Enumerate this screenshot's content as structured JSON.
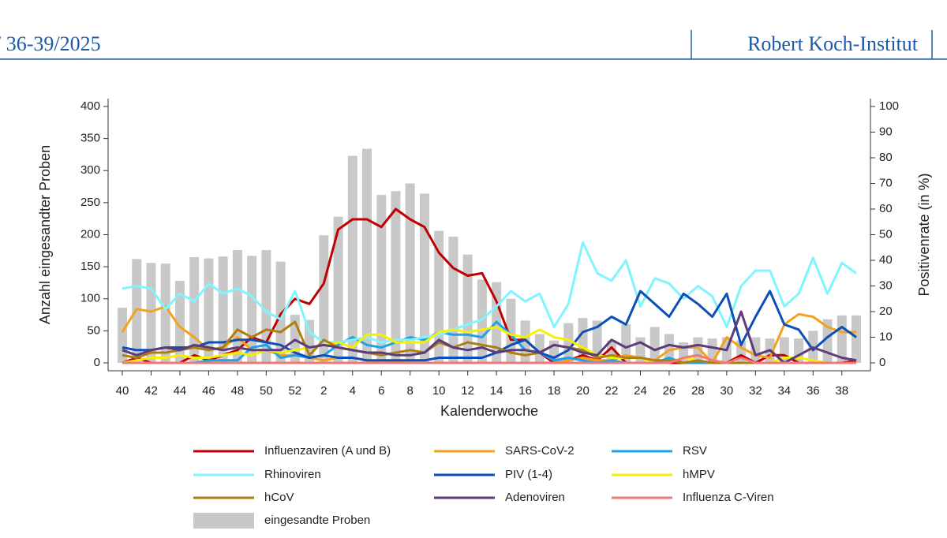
{
  "page_header": {
    "left": "/ 36-39/2025",
    "right": "Robert Koch-Institut"
  },
  "chart_data": {
    "type": "combo",
    "xlabel": "Kalenderwoche",
    "ylabel": "Anzahl eingesandter Proben",
    "y2label": "Positivenrate (in %)",
    "categories": [
      "40",
      null,
      "42",
      null,
      "44",
      null,
      "46",
      null,
      "48",
      null,
      "50",
      null,
      "52",
      null,
      "2",
      null,
      "4",
      null,
      "6",
      null,
      "8",
      null,
      "10",
      null,
      "12",
      null,
      "14",
      null,
      "16",
      null,
      "18",
      null,
      "20",
      null,
      "22",
      null,
      "24",
      null,
      "26",
      null,
      "28",
      null,
      "30",
      null,
      "32",
      null,
      "34",
      null,
      "36",
      null,
      "38",
      null
    ],
    "ylim": [
      0,
      400
    ],
    "yticks": [
      0,
      50,
      100,
      150,
      200,
      250,
      300,
      350,
      400
    ],
    "y2lim": [
      0,
      100
    ],
    "y2ticks": [
      0,
      10,
      20,
      30,
      40,
      50,
      60,
      70,
      80,
      90,
      100
    ],
    "series": [
      {
        "name": "Influenzaviren (A und B)",
        "type": "line",
        "axis": "y2",
        "color": "#c00000",
        "values": [
          0,
          2,
          0,
          0,
          0,
          3,
          1,
          3,
          5,
          10,
          8,
          19,
          25,
          23,
          31,
          52,
          56,
          56,
          53,
          60,
          56,
          53,
          43,
          37,
          34,
          35,
          24,
          9,
          9,
          4,
          0,
          1,
          3,
          1,
          6,
          0,
          0,
          0,
          0,
          0,
          0,
          0,
          0,
          3,
          0,
          3,
          3,
          0,
          0,
          0,
          0,
          1
        ]
      },
      {
        "name": "SARS-CoV-2",
        "type": "line",
        "axis": "y2",
        "color": "#f2a21c",
        "values": [
          12,
          21,
          20,
          22,
          14,
          10,
          5,
          6,
          10,
          5,
          5,
          3,
          3,
          2,
          1,
          2,
          2,
          1,
          0,
          1,
          0,
          0,
          0,
          0,
          0,
          0,
          0,
          0,
          0,
          0,
          0,
          1,
          2,
          1,
          1,
          3,
          2,
          1,
          5,
          6,
          6,
          0,
          10,
          6,
          3,
          2,
          15,
          19,
          18,
          14,
          12,
          12
        ]
      },
      {
        "name": "RSV",
        "type": "line",
        "axis": "y2",
        "color": "#1aa3ec",
        "values": [
          0,
          0,
          0,
          0,
          0,
          0,
          1,
          1,
          1,
          6,
          7,
          2,
          3,
          2,
          3,
          7,
          10,
          7,
          6,
          8,
          10,
          9,
          12,
          11,
          11,
          10,
          16,
          11,
          5,
          4,
          1,
          2,
          1,
          0,
          1,
          0,
          0,
          0,
          2,
          0,
          0,
          0,
          0,
          0,
          0,
          0,
          0,
          0,
          0,
          0,
          0,
          0
        ]
      },
      {
        "name": "Rhinoviren",
        "type": "line",
        "axis": "y2",
        "color": "#80f4ff",
        "values": [
          29,
          30,
          29,
          21,
          27,
          24,
          31,
          27,
          29,
          26,
          20,
          17,
          28,
          12,
          8,
          8,
          9,
          10,
          8,
          9,
          9,
          10,
          11,
          13,
          15,
          17,
          22,
          28,
          24,
          27,
          14,
          23,
          47,
          35,
          32,
          40,
          22,
          33,
          31,
          25,
          30,
          26,
          14,
          30,
          36,
          36,
          22,
          27,
          41,
          27,
          39,
          35
        ]
      },
      {
        "name": "PIV (1-4)",
        "type": "line",
        "axis": "y2",
        "color": "#0d4fb5",
        "values": [
          6,
          5,
          5,
          6,
          6,
          6,
          8,
          8,
          9,
          9,
          8,
          7,
          4,
          2,
          3,
          2,
          2,
          1,
          1,
          1,
          1,
          1,
          2,
          2,
          2,
          2,
          4,
          7,
          9,
          4,
          2,
          5,
          12,
          14,
          18,
          15,
          28,
          23,
          18,
          27,
          23,
          18,
          27,
          7,
          18,
          28,
          15,
          13,
          5,
          10,
          14,
          10
        ]
      },
      {
        "name": "hMPV",
        "type": "line",
        "axis": "y2",
        "color": "#f5f000",
        "values": [
          0,
          1,
          2,
          2,
          3,
          2,
          2,
          3,
          4,
          3,
          5,
          4,
          5,
          6,
          7,
          8,
          6,
          11,
          11,
          8,
          8,
          8,
          12,
          13,
          12,
          13,
          14,
          11,
          10,
          13,
          10,
          9,
          6,
          3,
          2,
          2,
          2,
          0,
          0,
          2,
          1,
          0,
          0,
          0,
          0,
          0,
          2,
          2,
          1,
          0,
          0,
          0
        ]
      },
      {
        "name": "hCoV",
        "type": "line",
        "axis": "y2",
        "color": "#b07d10",
        "values": [
          3,
          2,
          4,
          4,
          5,
          6,
          5,
          6,
          13,
          10,
          13,
          12,
          16,
          3,
          9,
          6,
          5,
          4,
          3,
          4,
          5,
          4,
          8,
          6,
          8,
          7,
          6,
          4,
          3,
          4,
          7,
          6,
          5,
          2,
          3,
          2,
          2,
          1,
          1,
          0,
          1,
          0,
          0,
          0,
          0,
          0,
          0,
          0,
          0,
          0,
          0,
          0
        ]
      },
      {
        "name": "Adenoviren",
        "type": "line",
        "axis": "y2",
        "color": "#5c3c7a",
        "values": [
          5,
          3,
          5,
          6,
          5,
          7,
          6,
          5,
          6,
          5,
          5,
          5,
          9,
          6,
          7,
          6,
          5,
          4,
          4,
          3,
          3,
          4,
          9,
          6,
          5,
          6,
          4,
          5,
          5,
          4,
          7,
          6,
          4,
          3,
          9,
          6,
          8,
          5,
          7,
          6,
          7,
          6,
          5,
          20,
          3,
          5,
          0,
          3,
          6,
          4,
          2,
          1
        ]
      },
      {
        "name": "Influenza C-Viren",
        "type": "line",
        "axis": "y2",
        "color": "#f07878",
        "values": [
          0,
          0,
          0,
          0,
          0,
          0,
          0,
          0,
          0,
          0,
          0,
          0,
          0,
          0,
          0,
          0,
          0,
          0,
          0,
          0,
          0,
          0,
          0,
          0,
          0,
          0,
          0,
          0,
          0,
          0,
          0,
          0,
          0,
          0,
          0,
          0,
          0,
          0,
          0,
          2,
          3,
          1,
          0,
          2,
          0,
          0,
          0,
          0,
          0,
          0,
          0,
          0
        ]
      },
      {
        "name": "eingesandte Proben",
        "type": "bar",
        "axis": "y",
        "color": "#c8c8c8",
        "values": [
          86,
          162,
          156,
          155,
          128,
          165,
          163,
          166,
          176,
          167,
          176,
          158,
          75,
          67,
          199,
          228,
          323,
          334,
          262,
          268,
          280,
          264,
          206,
          197,
          169,
          130,
          126,
          100,
          66,
          45,
          35,
          62,
          70,
          66,
          35,
          60,
          40,
          56,
          45,
          32,
          40,
          38,
          40,
          35,
          40,
          38,
          40,
          38,
          50,
          68,
          74,
          74
        ]
      }
    ]
  }
}
